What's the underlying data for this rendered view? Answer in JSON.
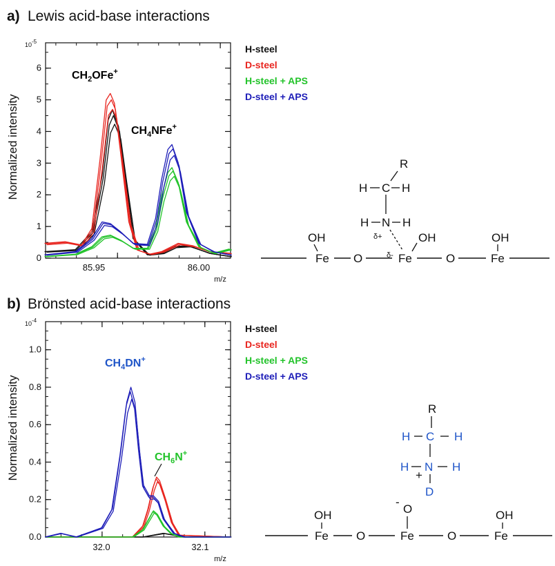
{
  "panels": [
    {
      "letter": "a)",
      "title": "Lewis acid-base interactions"
    },
    {
      "letter": "b)",
      "title": "Brönsted acid-base interactions"
    }
  ],
  "colors": {
    "H-steel": "#111111",
    "D-steel": "#e8251f",
    "H-steel + APS": "#22c32a",
    "D-steel + APS": "#1d1db8"
  },
  "chart_data": [
    {
      "type": "line",
      "ylabel": "Normalized intensity",
      "y_exponent": "10",
      "y_exponent_power": "-5",
      "xlabel": "m/z",
      "xlim": [
        85.915,
        86.005
      ],
      "ylim": [
        0,
        6.8
      ],
      "xticks": [
        "85.95",
        "86.00"
      ],
      "yticks": [
        "0",
        "1",
        "2",
        "3",
        "4",
        "5",
        "6"
      ],
      "annotations": [
        {
          "base": "CH",
          "sub": "2",
          "rest": "OFe",
          "sup": "+",
          "color": "#111111"
        },
        {
          "base": "CH",
          "sub": "4",
          "rest": "NFe",
          "sup": "+",
          "color": "#111111"
        }
      ],
      "legend": [
        "H-steel",
        "D-steel",
        "H-steel + APS",
        "D-steel + APS"
      ],
      "series": [
        {
          "name": "H-steel",
          "color": "#111111",
          "x": [
            85.915,
            85.93,
            85.938,
            85.943,
            85.946,
            85.948,
            85.951,
            85.954,
            85.958,
            85.965,
            85.972,
            85.978,
            85.985,
            85.995,
            86.005
          ],
          "y": [
            0.2,
            0.26,
            0.8,
            2.5,
            4.2,
            4.5,
            4.0,
            2.5,
            0.6,
            0.1,
            0.15,
            0.35,
            0.38,
            0.15,
            0.05
          ]
        },
        {
          "name": "D-steel",
          "color": "#e8251f",
          "x": [
            85.915,
            85.925,
            85.933,
            85.938,
            85.942,
            85.945,
            85.947,
            85.949,
            85.952,
            85.956,
            85.96,
            85.966,
            85.972,
            85.98,
            85.987,
            85.995,
            86.005
          ],
          "y": [
            0.45,
            0.5,
            0.4,
            0.9,
            3.0,
            4.8,
            5.0,
            4.7,
            3.2,
            1.1,
            0.25,
            0.12,
            0.2,
            0.45,
            0.38,
            0.2,
            0.15
          ]
        },
        {
          "name": "H-steel + APS",
          "color": "#22c32a",
          "x": [
            85.915,
            85.93,
            85.938,
            85.943,
            85.947,
            85.952,
            85.958,
            85.965,
            85.969,
            85.972,
            85.975,
            85.977,
            85.98,
            85.984,
            85.99,
            85.997,
            86.005
          ],
          "y": [
            0.05,
            0.12,
            0.35,
            0.65,
            0.7,
            0.55,
            0.3,
            0.3,
            0.9,
            1.9,
            2.6,
            2.75,
            2.3,
            1.1,
            0.35,
            0.15,
            0.28
          ]
        },
        {
          "name": "D-steel + APS",
          "color": "#1d1db8",
          "x": [
            85.915,
            85.93,
            85.938,
            85.943,
            85.947,
            85.952,
            85.958,
            85.965,
            85.969,
            85.972,
            85.975,
            85.977,
            85.98,
            85.984,
            85.99,
            85.997,
            86.005
          ],
          "y": [
            0.1,
            0.2,
            0.6,
            1.1,
            1.05,
            0.8,
            0.45,
            0.42,
            1.2,
            2.4,
            3.3,
            3.45,
            2.9,
            1.4,
            0.45,
            0.2,
            0.1
          ]
        }
      ]
    },
    {
      "type": "line",
      "ylabel": "Normalized intensity",
      "y_exponent": "10",
      "y_exponent_power": "-4",
      "xlabel": "m/z",
      "xlim": [
        31.945,
        32.125
      ],
      "ylim": [
        0,
        1.15
      ],
      "xticks": [
        "32.0",
        "32.1"
      ],
      "yticks": [
        "0.0",
        "0.2",
        "0.4",
        "0.6",
        "0.8",
        "1.0"
      ],
      "annotations": [
        {
          "base": "CH",
          "sub": "4",
          "rest": "DN",
          "sup": "+",
          "color": "#1f55c8"
        },
        {
          "base": "CH",
          "sub": "6",
          "rest": "N",
          "sup": "+",
          "color": "#22c32a"
        }
      ],
      "legend": [
        "H-steel",
        "D-steel",
        "H-steel + APS",
        "D-steel + APS"
      ],
      "series": [
        {
          "name": "H-steel",
          "color": "#111111",
          "x": [
            31.945,
            32.04,
            32.05,
            32.06,
            32.07,
            32.08,
            32.125
          ],
          "y": [
            0.0,
            0.0,
            0.01,
            0.02,
            0.01,
            0.0,
            0.0
          ]
        },
        {
          "name": "D-steel",
          "color": "#e8251f",
          "x": [
            31.945,
            32.03,
            32.04,
            32.045,
            32.05,
            32.053,
            32.056,
            32.062,
            32.068,
            32.075,
            32.125
          ],
          "y": [
            0.0,
            0.0,
            0.06,
            0.15,
            0.27,
            0.32,
            0.3,
            0.2,
            0.08,
            0.01,
            0.0
          ]
        },
        {
          "name": "H-steel + APS",
          "color": "#22c32a",
          "x": [
            31.945,
            32.03,
            32.04,
            32.046,
            32.05,
            32.054,
            32.06,
            32.067,
            32.075,
            32.125
          ],
          "y": [
            0.0,
            0.0,
            0.04,
            0.1,
            0.14,
            0.12,
            0.06,
            0.02,
            0.0,
            0.0
          ]
        },
        {
          "name": "D-steel + APS",
          "color": "#1d1db8",
          "x": [
            31.945,
            31.96,
            31.975,
            31.985,
            31.995,
            32.0,
            32.01,
            32.018,
            32.024,
            32.028,
            32.032,
            32.036,
            32.04,
            32.046,
            32.05,
            32.055,
            32.06,
            32.07,
            32.08,
            32.09,
            32.125
          ],
          "y": [
            0.0,
            0.02,
            0.0,
            0.02,
            0.04,
            0.05,
            0.15,
            0.45,
            0.72,
            0.8,
            0.72,
            0.48,
            0.28,
            0.22,
            0.22,
            0.19,
            0.1,
            0.02,
            0.0,
            0.0,
            0.0
          ]
        }
      ]
    }
  ],
  "schemes": [
    {
      "labels": [
        "R",
        "H",
        "C",
        "H",
        "H",
        "N",
        "H",
        "δ+",
        "δ-",
        "OH",
        "OH",
        "OH",
        "Fe",
        "O",
        "Fe",
        "O",
        "Fe"
      ]
    },
    {
      "labels": [
        "R",
        "H",
        "C",
        "H",
        "H",
        "N",
        "H",
        "+",
        "D",
        "-",
        "O",
        "OH",
        "OH",
        "Fe",
        "O",
        "Fe",
        "O",
        "Fe"
      ]
    }
  ]
}
